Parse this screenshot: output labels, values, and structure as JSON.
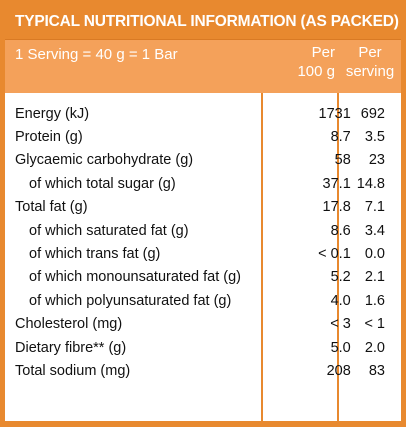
{
  "title": "TYPICAL NUTRITIONAL INFORMATION (AS PACKED)",
  "header": {
    "serving": "1 Serving = 40 g = 1 Bar",
    "per100_line1": "Per",
    "per100_line2": "100 g",
    "perserving_line1": "Per",
    "perserving_line2": "serving"
  },
  "rows": [
    {
      "label": "Energy (kJ)",
      "per100": "1731",
      "perserving": "692",
      "sub": false
    },
    {
      "label": "Protein (g)",
      "per100": "8.7",
      "perserving": "3.5",
      "sub": false
    },
    {
      "label": "Glycaemic carbohydrate (g)",
      "per100": "58",
      "perserving": "23",
      "sub": false
    },
    {
      "label": "of which total sugar (g)",
      "per100": "37.1",
      "perserving": "14.8",
      "sub": true
    },
    {
      "label": "Total fat (g)",
      "per100": "17.8",
      "perserving": "7.1",
      "sub": false
    },
    {
      "label": "of which saturated fat (g)",
      "per100": "8.6",
      "perserving": "3.4",
      "sub": true
    },
    {
      "label": "of which trans fat (g)",
      "per100": "< 0.1",
      "perserving": "0.0",
      "sub": true
    },
    {
      "label": "of which monounsaturated fat (g)",
      "per100": "5.2",
      "perserving": "2.1",
      "sub": true
    },
    {
      "label": "of which polyunsaturated fat (g)",
      "per100": "4.0",
      "perserving": "1.6",
      "sub": true
    },
    {
      "label": "Cholesterol (mg)",
      "per100": "< 3",
      "perserving": "< 1",
      "sub": false
    },
    {
      "label": "Dietary fibre** (g)",
      "per100": "5.0",
      "perserving": "2.0",
      "sub": false
    },
    {
      "label": "Total sodium (mg)",
      "per100": "208",
      "perserving": "83",
      "sub": false
    }
  ],
  "colors": {
    "border": "#e8892f",
    "header_fill": "#f4a15a",
    "text": "#111111"
  }
}
